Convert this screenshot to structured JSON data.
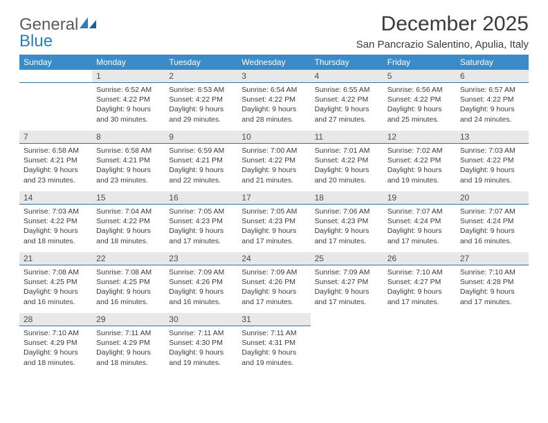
{
  "logo": {
    "text_gray": "General",
    "text_blue": "Blue"
  },
  "title": "December 2025",
  "location": "San Pancrazio Salentino, Apulia, Italy",
  "style": {
    "header_bg": "#3b8bc9",
    "header_text": "#ffffff",
    "daynum_bg": "#e8e8e8",
    "daynum_text": "#4a4a4a",
    "separator": "#2b6fa8",
    "body_text": "#3a3a3a",
    "title_size_pt": 30,
    "location_size_pt": 15,
    "header_font_size_pt": 12,
    "daynum_font_size_pt": 12,
    "content_font_size_pt": 10.5
  },
  "day_headers": [
    "Sunday",
    "Monday",
    "Tuesday",
    "Wednesday",
    "Thursday",
    "Friday",
    "Saturday"
  ],
  "weeks": [
    [
      null,
      {
        "n": "1",
        "sunrise": "6:52 AM",
        "sunset": "4:22 PM",
        "daylight": "9 hours and 30 minutes."
      },
      {
        "n": "2",
        "sunrise": "6:53 AM",
        "sunset": "4:22 PM",
        "daylight": "9 hours and 29 minutes."
      },
      {
        "n": "3",
        "sunrise": "6:54 AM",
        "sunset": "4:22 PM",
        "daylight": "9 hours and 28 minutes."
      },
      {
        "n": "4",
        "sunrise": "6:55 AM",
        "sunset": "4:22 PM",
        "daylight": "9 hours and 27 minutes."
      },
      {
        "n": "5",
        "sunrise": "6:56 AM",
        "sunset": "4:22 PM",
        "daylight": "9 hours and 25 minutes."
      },
      {
        "n": "6",
        "sunrise": "6:57 AM",
        "sunset": "4:22 PM",
        "daylight": "9 hours and 24 minutes."
      }
    ],
    [
      {
        "n": "7",
        "sunrise": "6:58 AM",
        "sunset": "4:21 PM",
        "daylight": "9 hours and 23 minutes."
      },
      {
        "n": "8",
        "sunrise": "6:58 AM",
        "sunset": "4:21 PM",
        "daylight": "9 hours and 23 minutes."
      },
      {
        "n": "9",
        "sunrise": "6:59 AM",
        "sunset": "4:21 PM",
        "daylight": "9 hours and 22 minutes."
      },
      {
        "n": "10",
        "sunrise": "7:00 AM",
        "sunset": "4:22 PM",
        "daylight": "9 hours and 21 minutes."
      },
      {
        "n": "11",
        "sunrise": "7:01 AM",
        "sunset": "4:22 PM",
        "daylight": "9 hours and 20 minutes."
      },
      {
        "n": "12",
        "sunrise": "7:02 AM",
        "sunset": "4:22 PM",
        "daylight": "9 hours and 19 minutes."
      },
      {
        "n": "13",
        "sunrise": "7:03 AM",
        "sunset": "4:22 PM",
        "daylight": "9 hours and 19 minutes."
      }
    ],
    [
      {
        "n": "14",
        "sunrise": "7:03 AM",
        "sunset": "4:22 PM",
        "daylight": "9 hours and 18 minutes."
      },
      {
        "n": "15",
        "sunrise": "7:04 AM",
        "sunset": "4:22 PM",
        "daylight": "9 hours and 18 minutes."
      },
      {
        "n": "16",
        "sunrise": "7:05 AM",
        "sunset": "4:23 PM",
        "daylight": "9 hours and 17 minutes."
      },
      {
        "n": "17",
        "sunrise": "7:05 AM",
        "sunset": "4:23 PM",
        "daylight": "9 hours and 17 minutes."
      },
      {
        "n": "18",
        "sunrise": "7:06 AM",
        "sunset": "4:23 PM",
        "daylight": "9 hours and 17 minutes."
      },
      {
        "n": "19",
        "sunrise": "7:07 AM",
        "sunset": "4:24 PM",
        "daylight": "9 hours and 17 minutes."
      },
      {
        "n": "20",
        "sunrise": "7:07 AM",
        "sunset": "4:24 PM",
        "daylight": "9 hours and 16 minutes."
      }
    ],
    [
      {
        "n": "21",
        "sunrise": "7:08 AM",
        "sunset": "4:25 PM",
        "daylight": "9 hours and 16 minutes."
      },
      {
        "n": "22",
        "sunrise": "7:08 AM",
        "sunset": "4:25 PM",
        "daylight": "9 hours and 16 minutes."
      },
      {
        "n": "23",
        "sunrise": "7:09 AM",
        "sunset": "4:26 PM",
        "daylight": "9 hours and 16 minutes."
      },
      {
        "n": "24",
        "sunrise": "7:09 AM",
        "sunset": "4:26 PM",
        "daylight": "9 hours and 17 minutes."
      },
      {
        "n": "25",
        "sunrise": "7:09 AM",
        "sunset": "4:27 PM",
        "daylight": "9 hours and 17 minutes."
      },
      {
        "n": "26",
        "sunrise": "7:10 AM",
        "sunset": "4:27 PM",
        "daylight": "9 hours and 17 minutes."
      },
      {
        "n": "27",
        "sunrise": "7:10 AM",
        "sunset": "4:28 PM",
        "daylight": "9 hours and 17 minutes."
      }
    ],
    [
      {
        "n": "28",
        "sunrise": "7:10 AM",
        "sunset": "4:29 PM",
        "daylight": "9 hours and 18 minutes."
      },
      {
        "n": "29",
        "sunrise": "7:11 AM",
        "sunset": "4:29 PM",
        "daylight": "9 hours and 18 minutes."
      },
      {
        "n": "30",
        "sunrise": "7:11 AM",
        "sunset": "4:30 PM",
        "daylight": "9 hours and 19 minutes."
      },
      {
        "n": "31",
        "sunrise": "7:11 AM",
        "sunset": "4:31 PM",
        "daylight": "9 hours and 19 minutes."
      },
      null,
      null,
      null
    ]
  ],
  "labels": {
    "sunrise": "Sunrise:",
    "sunset": "Sunset:",
    "daylight_pre": "Daylight:"
  }
}
